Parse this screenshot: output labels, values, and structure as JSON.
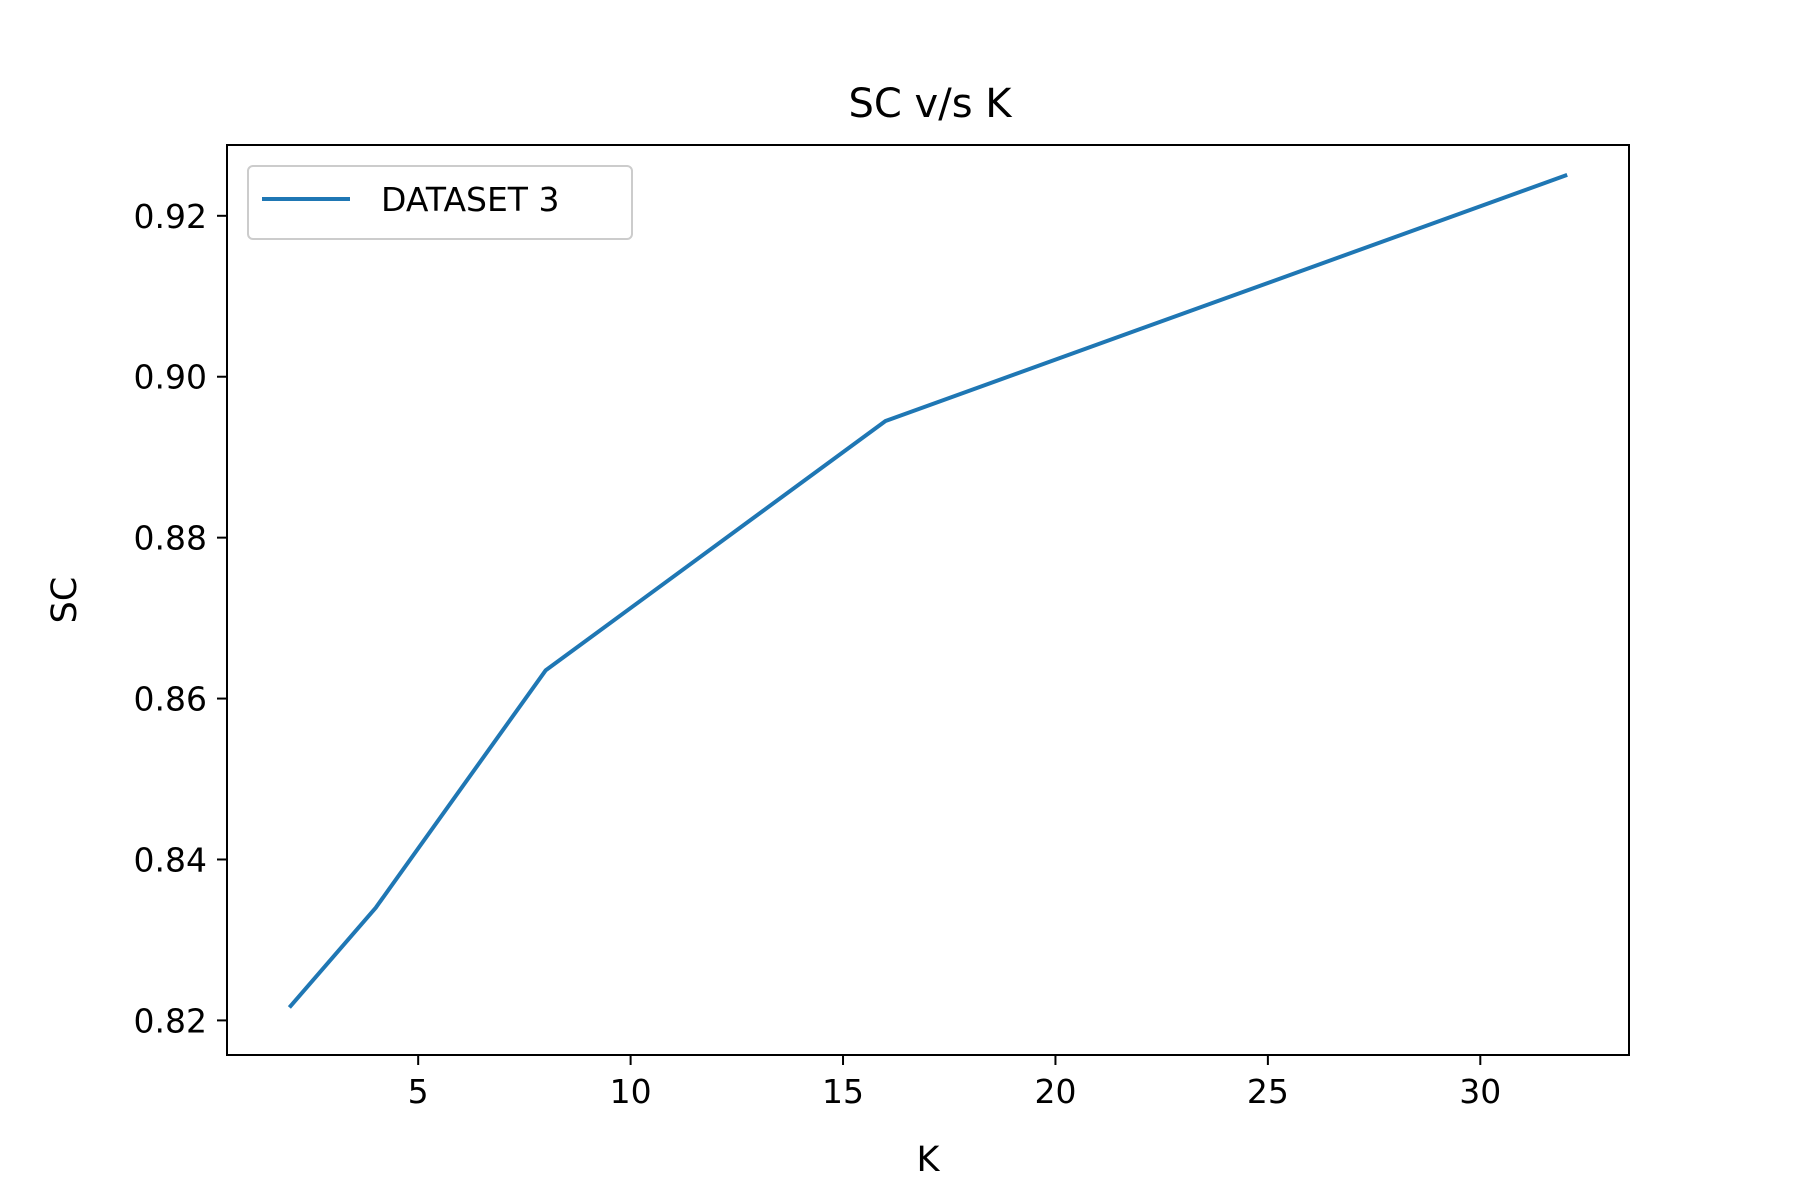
{
  "chart_data": {
    "type": "line",
    "title": "SC v/s K",
    "xlabel": "K",
    "ylabel": "SC",
    "xlim": [
      0.5,
      33.5
    ],
    "ylim": [
      0.8157,
      0.9288
    ],
    "xticks": [
      5,
      10,
      15,
      20,
      25,
      30
    ],
    "xtick_labels": [
      "5",
      "10",
      "15",
      "20",
      "25",
      "30"
    ],
    "yticks": [
      0.82,
      0.84,
      0.86,
      0.88,
      0.9,
      0.92
    ],
    "ytick_labels": [
      "0.82",
      "0.84",
      "0.86",
      "0.88",
      "0.90",
      "0.92"
    ],
    "grid": false,
    "legend_position": "upper-left",
    "series": [
      {
        "name": "DATASET 3",
        "color": "#1f77b4",
        "x": [
          2,
          4,
          8,
          16,
          32
        ],
        "y": [
          0.8218,
          0.834,
          0.8635,
          0.8945,
          0.925
        ]
      }
    ]
  }
}
